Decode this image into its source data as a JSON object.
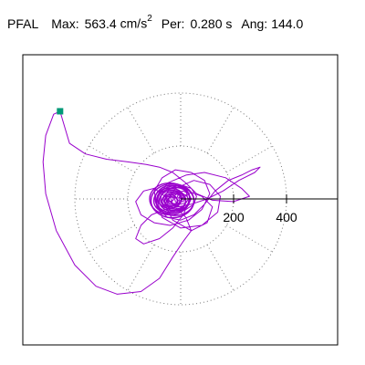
{
  "header": {
    "station": "PFAL",
    "max_label": "Max:",
    "max_value": "563.4",
    "max_unit": "cm/s",
    "max_unit_power": "2",
    "period_label": "Per:",
    "period_value": "0.280 s",
    "angle_label": "Ang:",
    "angle_value": "144.0"
  },
  "chart_data": {
    "type": "scatter",
    "title": "PFAL  Max:  563.4 cm/s² Per:  0.280 s  Ang: 144.0",
    "description_axes": "polar orbit of horizontal response acceleration (cm/s^2)",
    "radial_ticks": [
      200,
      400
    ],
    "radial_tick_labels": [
      "200",
      "400"
    ],
    "rings": [
      200,
      400
    ],
    "spokes_deg": [
      0,
      30,
      60,
      90,
      120,
      150,
      180,
      210,
      240,
      270,
      300,
      330
    ],
    "grid": true,
    "peak_point": {
      "x": -455.8,
      "y": 331.2,
      "magnitude": 563.4,
      "angle_deg": 144.0
    },
    "series": [
      {
        "color": "#9900cc",
        "points": [
          [
            0,
            0
          ],
          [
            40,
            25
          ],
          [
            80,
            10
          ],
          [
            120,
            -30
          ],
          [
            100,
            -90
          ],
          [
            40,
            -120
          ],
          [
            -30,
            -80
          ],
          [
            -60,
            -20
          ],
          [
            -20,
            40
          ],
          [
            50,
            70
          ],
          [
            110,
            55
          ],
          [
            150,
            10
          ],
          [
            140,
            -50
          ],
          [
            80,
            -100
          ],
          [
            0,
            -110
          ],
          [
            -70,
            -70
          ],
          [
            -90,
            0
          ],
          [
            -50,
            60
          ],
          [
            20,
            90
          ],
          [
            90,
            100
          ],
          [
            170,
            80
          ],
          [
            230,
            40
          ],
          [
            260,
            10
          ],
          [
            200,
            -10
          ],
          [
            120,
            -5
          ],
          [
            60,
            20
          ],
          [
            20,
            60
          ],
          [
            -30,
            100
          ],
          [
            -80,
            120
          ],
          [
            -130,
            130
          ],
          [
            -200,
            140
          ],
          [
            -280,
            150
          ],
          [
            -360,
            170
          ],
          [
            -420,
            210
          ],
          [
            -455.8,
            331.2
          ],
          [
            -480,
            320
          ],
          [
            -510,
            240
          ],
          [
            -520,
            140
          ],
          [
            -510,
            20
          ],
          [
            -470,
            -120
          ],
          [
            -400,
            -250
          ],
          [
            -320,
            -330
          ],
          [
            -240,
            -360
          ],
          [
            -150,
            -350
          ],
          [
            -80,
            -300
          ],
          [
            -30,
            -220
          ],
          [
            10,
            -160
          ],
          [
            40,
            -120
          ],
          [
            20,
            -70
          ],
          [
            -20,
            -30
          ],
          [
            -60,
            10
          ],
          [
            -100,
            40
          ],
          [
            -140,
            30
          ],
          [
            -170,
            -10
          ],
          [
            -150,
            -60
          ],
          [
            -100,
            -90
          ],
          [
            -40,
            -100
          ],
          [
            30,
            -80
          ],
          [
            80,
            -40
          ],
          [
            110,
            20
          ],
          [
            90,
            70
          ],
          [
            40,
            100
          ],
          [
            -20,
            110
          ],
          [
            -70,
            80
          ],
          [
            -100,
            30
          ],
          [
            -90,
            -30
          ],
          [
            -50,
            -70
          ],
          [
            0,
            -80
          ],
          [
            50,
            -60
          ],
          [
            90,
            -20
          ],
          [
            130,
            30
          ],
          [
            180,
            70
          ],
          [
            230,
            90
          ],
          [
            270,
            110
          ],
          [
            300,
            120
          ],
          [
            280,
            100
          ],
          [
            220,
            70
          ],
          [
            160,
            30
          ],
          [
            100,
            0
          ],
          [
            40,
            -20
          ],
          [
            -10,
            -30
          ],
          [
            -60,
            -40
          ],
          [
            -110,
            -60
          ],
          [
            -150,
            -100
          ],
          [
            -170,
            -150
          ],
          [
            -140,
            -170
          ],
          [
            -80,
            -150
          ],
          [
            -30,
            -110
          ],
          [
            10,
            -60
          ],
          [
            30,
            -10
          ],
          [
            20,
            30
          ],
          [
            -10,
            50
          ],
          [
            -40,
            40
          ],
          [
            -60,
            10
          ],
          [
            -50,
            -20
          ],
          [
            -20,
            -40
          ],
          [
            20,
            -40
          ],
          [
            50,
            -20
          ],
          [
            60,
            10
          ],
          [
            40,
            40
          ],
          [
            10,
            50
          ],
          [
            -20,
            40
          ],
          [
            -40,
            10
          ],
          [
            -30,
            -20
          ],
          [
            0,
            -30
          ],
          [
            30,
            -20
          ],
          [
            40,
            0
          ],
          [
            30,
            20
          ],
          [
            10,
            30
          ],
          [
            -10,
            25
          ],
          [
            -25,
            10
          ],
          [
            -20,
            -10
          ],
          [
            0,
            -20
          ],
          [
            20,
            -15
          ],
          [
            30,
            0
          ],
          [
            20,
            15
          ],
          [
            5,
            20
          ],
          [
            -10,
            15
          ],
          [
            -15,
            0
          ],
          [
            -5,
            -10
          ],
          [
            10,
            -10
          ],
          [
            15,
            0
          ],
          [
            10,
            10
          ],
          [
            0,
            12
          ],
          [
            -8,
            5
          ],
          [
            -5,
            -5
          ],
          [
            5,
            -5
          ],
          [
            8,
            2
          ],
          [
            2,
            8
          ],
          [
            -4,
            4
          ],
          [
            0,
            0
          ]
        ]
      }
    ],
    "cluster_center": {
      "x": 0,
      "y": 0
    },
    "marker_color": "#009977"
  }
}
